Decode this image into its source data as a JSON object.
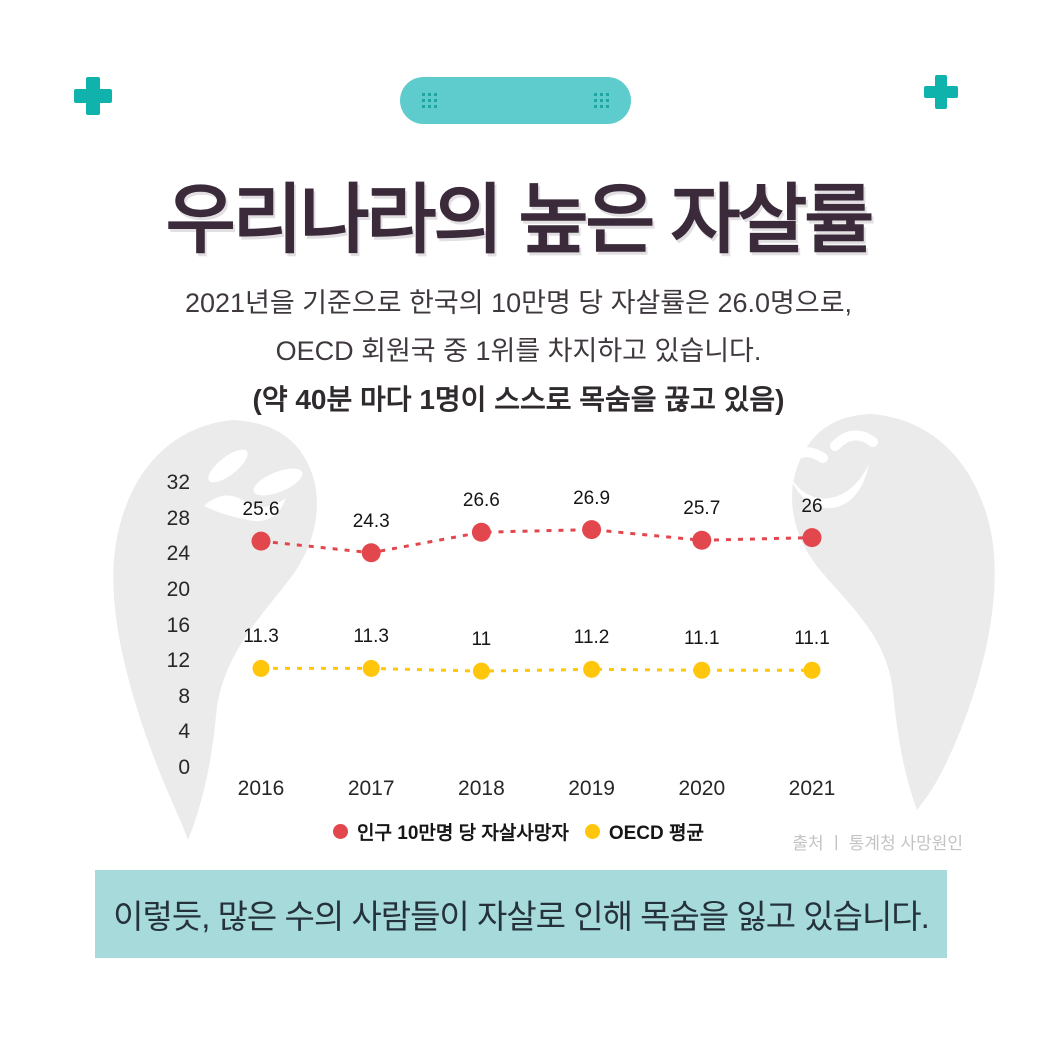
{
  "theme": {
    "accent_teal": "#0fb3ab",
    "pill_teal": "#5ecccc",
    "pill_dot_teal": "#21a5a3",
    "banner_bg": "#a7dbdb",
    "banner_text": "#25323c",
    "title_color": "#3b2b3a",
    "body_text": "#3f393f",
    "ghost_gray": "#ebebeb",
    "axis_text": "#272727",
    "label_text": "#161616",
    "source_text": "#c3c3c3"
  },
  "header": {
    "title": "우리나라의 높은 자살률",
    "subtitle_line1": "2021년을 기준으로 한국의 10만명 당 자살률은 26.0명으로,",
    "subtitle_line2": "OECD 회원국 중 1위를 차지하고 있습니다.",
    "subtitle_line3": "(약 40분 마다 1명이 스스로 목숨을 끊고 있음)"
  },
  "chart_data": {
    "type": "line",
    "line_style": "dashed",
    "categories": [
      "2016",
      "2017",
      "2018",
      "2019",
      "2020",
      "2021"
    ],
    "series": [
      {
        "name": "인구 10만명 당 자살사망자",
        "color": "#e2474e",
        "values": [
          25.6,
          24.3,
          26.6,
          26.9,
          25.7,
          26
        ],
        "labels": [
          "25.6",
          "24.3",
          "26.6",
          "26.9",
          "25.7",
          "26"
        ]
      },
      {
        "name": "OECD 평균",
        "color": "#ffc60b",
        "values": [
          11.3,
          11.3,
          11,
          11.2,
          11.1,
          11.1
        ],
        "labels": [
          "11.3",
          "11.3",
          "11",
          "11.2",
          "11.1",
          "11.1"
        ]
      }
    ],
    "y_ticks": [
      0,
      4,
      8,
      12,
      16,
      20,
      24,
      28,
      32
    ],
    "ylim": [
      0,
      32
    ],
    "grid": false,
    "legend_position": "bottom",
    "title": "",
    "xlabel": "",
    "ylabel": ""
  },
  "source": {
    "text": "출처 ㅣ 통계청 사망원인"
  },
  "footer": {
    "banner_text": "이렇듯, 많은 수의 사람들이 자살로 인해 목숨을 잃고 있습니다."
  }
}
